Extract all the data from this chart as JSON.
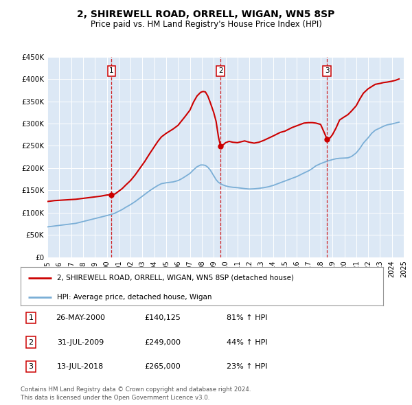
{
  "title": "2, SHIREWELL ROAD, ORRELL, WIGAN, WN5 8SP",
  "subtitle": "Price paid vs. HM Land Registry's House Price Index (HPI)",
  "background_color": "#ffffff",
  "plot_bg_color": "#dce8f5",
  "grid_color": "#ffffff",
  "sale_color": "#cc0000",
  "hpi_color": "#7aaed6",
  "sale_label": "2, SHIREWELL ROAD, ORRELL, WIGAN, WN5 8SP (detached house)",
  "hpi_label": "HPI: Average price, detached house, Wigan",
  "transactions": [
    {
      "num": 1,
      "date": "26-MAY-2000",
      "year": 2000.4,
      "price": "£140,125",
      "pct": "81% ↑ HPI"
    },
    {
      "num": 2,
      "date": "31-JUL-2009",
      "year": 2009.58,
      "price": "£249,000",
      "pct": "44% ↑ HPI"
    },
    {
      "num": 3,
      "date": "13-JUL-2018",
      "year": 2018.54,
      "price": "£265,000",
      "pct": "23% ↑ HPI"
    }
  ],
  "sale_line_x": [
    1995.0,
    1995.3,
    1995.6,
    1995.9,
    1996.2,
    1996.5,
    1996.8,
    1997.1,
    1997.4,
    1997.7,
    1998.0,
    1998.3,
    1998.6,
    1998.9,
    1999.2,
    1999.5,
    1999.8,
    2000.0,
    2000.2,
    2000.4,
    2000.7,
    2001.0,
    2001.3,
    2001.6,
    2002.0,
    2002.4,
    2002.8,
    2003.2,
    2003.6,
    2004.0,
    2004.3,
    2004.6,
    2005.0,
    2005.3,
    2005.6,
    2006.0,
    2006.3,
    2006.6,
    2007.0,
    2007.3,
    2007.6,
    2007.9,
    2008.1,
    2008.3,
    2008.5,
    2008.7,
    2009.0,
    2009.2,
    2009.4,
    2009.58,
    2009.8,
    2010.0,
    2010.3,
    2010.6,
    2011.0,
    2011.3,
    2011.6,
    2012.0,
    2012.4,
    2012.8,
    2013.2,
    2013.6,
    2014.0,
    2014.3,
    2014.6,
    2015.0,
    2015.3,
    2015.6,
    2016.0,
    2016.3,
    2016.6,
    2017.0,
    2017.3,
    2017.6,
    2018.0,
    2018.3,
    2018.54,
    2018.8,
    2019.0,
    2019.3,
    2019.6,
    2020.0,
    2020.3,
    2020.6,
    2021.0,
    2021.3,
    2021.6,
    2022.0,
    2022.3,
    2022.6,
    2023.0,
    2023.3,
    2023.6,
    2024.0,
    2024.3,
    2024.6
  ],
  "sale_line_y": [
    125000,
    126000,
    127000,
    127500,
    128000,
    128500,
    129000,
    129500,
    130000,
    131000,
    132000,
    133000,
    134000,
    135000,
    136000,
    137000,
    138500,
    139500,
    140000,
    140125,
    142000,
    148000,
    154000,
    162000,
    172000,
    185000,
    200000,
    215000,
    232000,
    248000,
    260000,
    270000,
    278000,
    283000,
    288000,
    296000,
    306000,
    316000,
    330000,
    348000,
    362000,
    370000,
    372000,
    371000,
    362000,
    348000,
    325000,
    305000,
    270000,
    249000,
    252000,
    257000,
    260000,
    258000,
    257000,
    259000,
    261000,
    258000,
    256000,
    258000,
    262000,
    267000,
    272000,
    276000,
    280000,
    283000,
    287000,
    291000,
    295000,
    298000,
    301000,
    302000,
    302000,
    301000,
    298000,
    280000,
    265000,
    268000,
    275000,
    290000,
    308000,
    315000,
    320000,
    328000,
    340000,
    355000,
    368000,
    378000,
    383000,
    388000,
    390000,
    392000,
    393000,
    395000,
    397000,
    400000
  ],
  "hpi_line_x": [
    1995.0,
    1995.3,
    1995.6,
    1995.9,
    1996.2,
    1996.5,
    1996.8,
    1997.1,
    1997.4,
    1997.7,
    1998.0,
    1998.3,
    1998.6,
    1998.9,
    1999.2,
    1999.5,
    1999.8,
    2000.0,
    2000.4,
    2000.7,
    2001.0,
    2001.3,
    2001.6,
    2002.0,
    2002.4,
    2002.8,
    2003.2,
    2003.6,
    2004.0,
    2004.3,
    2004.6,
    2005.0,
    2005.3,
    2005.6,
    2006.0,
    2006.3,
    2006.6,
    2007.0,
    2007.3,
    2007.6,
    2007.9,
    2008.1,
    2008.3,
    2008.5,
    2008.7,
    2009.0,
    2009.2,
    2009.4,
    2009.7,
    2010.0,
    2010.3,
    2010.6,
    2011.0,
    2011.3,
    2011.6,
    2012.0,
    2012.4,
    2012.8,
    2013.2,
    2013.6,
    2014.0,
    2014.3,
    2014.6,
    2015.0,
    2015.3,
    2015.6,
    2016.0,
    2016.3,
    2016.6,
    2017.0,
    2017.3,
    2017.6,
    2018.0,
    2018.3,
    2018.6,
    2019.0,
    2019.3,
    2019.6,
    2020.0,
    2020.3,
    2020.6,
    2021.0,
    2021.3,
    2021.6,
    2022.0,
    2022.3,
    2022.6,
    2023.0,
    2023.3,
    2023.6,
    2024.0,
    2024.3,
    2024.6
  ],
  "hpi_line_y": [
    68000,
    69000,
    70000,
    71000,
    72000,
    73000,
    74000,
    75000,
    76000,
    78000,
    80000,
    82000,
    84000,
    86000,
    88000,
    90000,
    92000,
    93500,
    96000,
    99000,
    103000,
    107000,
    112000,
    118000,
    125000,
    133000,
    141000,
    149000,
    156000,
    161000,
    165000,
    167000,
    168000,
    169000,
    172000,
    176000,
    181000,
    188000,
    196000,
    203000,
    207000,
    207000,
    206000,
    202000,
    196000,
    183000,
    174000,
    168000,
    163000,
    160000,
    158000,
    157000,
    156000,
    155000,
    154000,
    153000,
    153500,
    154500,
    156000,
    158000,
    161000,
    164000,
    167000,
    171000,
    174000,
    177000,
    181000,
    185000,
    189000,
    194000,
    199000,
    205000,
    210000,
    213000,
    216000,
    219000,
    221000,
    222000,
    222500,
    223000,
    226000,
    234000,
    244000,
    256000,
    268000,
    278000,
    285000,
    290000,
    294000,
    297000,
    299000,
    301000,
    303000
  ],
  "ylim": [
    0,
    450000
  ],
  "xlim": [
    1995,
    2025
  ],
  "yticks": [
    0,
    50000,
    100000,
    150000,
    200000,
    250000,
    300000,
    350000,
    400000,
    450000
  ],
  "ytick_labels": [
    "£0",
    "£50K",
    "£100K",
    "£150K",
    "£200K",
    "£250K",
    "£300K",
    "£350K",
    "£400K",
    "£450K"
  ],
  "xticks": [
    1995,
    1996,
    1997,
    1998,
    1999,
    2000,
    2001,
    2002,
    2003,
    2004,
    2005,
    2006,
    2007,
    2008,
    2009,
    2010,
    2011,
    2012,
    2013,
    2014,
    2015,
    2016,
    2017,
    2018,
    2019,
    2020,
    2021,
    2022,
    2023,
    2024,
    2025
  ],
  "footer": "Contains HM Land Registry data © Crown copyright and database right 2024.\nThis data is licensed under the Open Government Licence v3.0."
}
